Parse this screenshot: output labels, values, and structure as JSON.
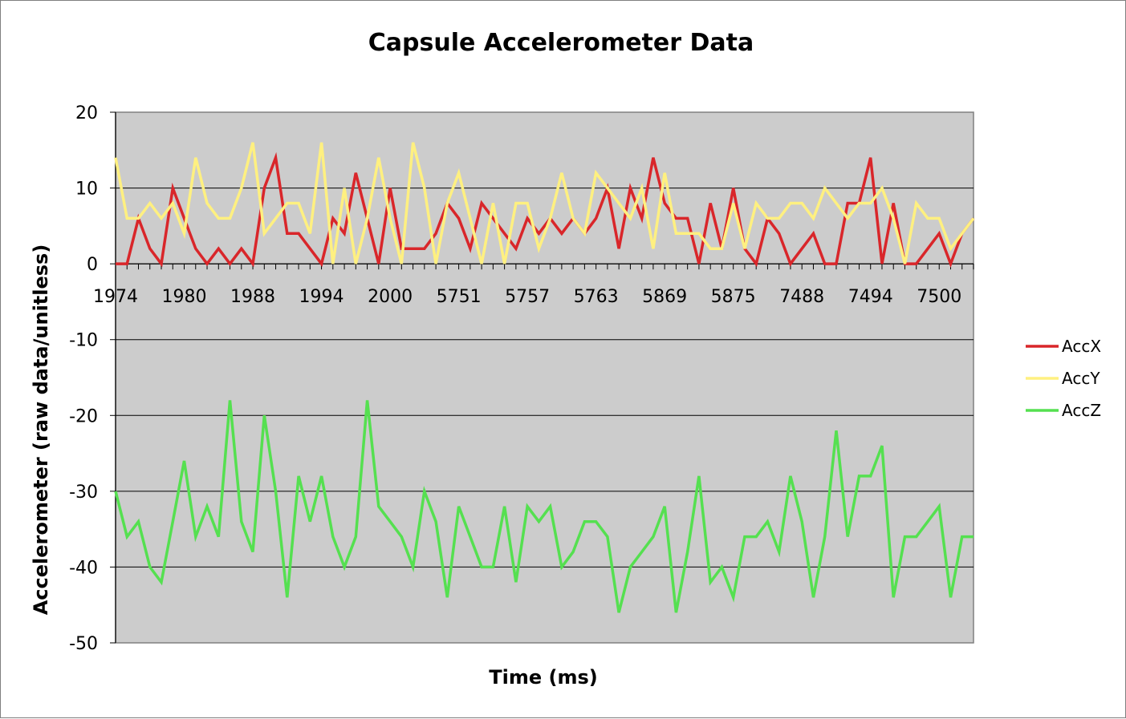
{
  "chart_data": {
    "type": "line",
    "title": "Capsule Accelerometer Data",
    "xlabel": "Time (ms)",
    "ylabel": "Accelerometer (raw data/unitless)",
    "ylim": [
      -50,
      20
    ],
    "yticks": [
      20,
      10,
      0,
      -10,
      -20,
      -30,
      -40,
      -50
    ],
    "grid": true,
    "legend_position": "right",
    "plot_background": "#cccccc",
    "x_tick_labels": [
      "1974",
      "1980",
      "1988",
      "1994",
      "2000",
      "5751",
      "5757",
      "5763",
      "5869",
      "5875",
      "7488",
      "7494",
      "7500"
    ],
    "series": [
      {
        "name": "AccX",
        "color": "#d9262a",
        "values": [
          0,
          0,
          6,
          2,
          0,
          10,
          6,
          2,
          0,
          2,
          0,
          2,
          0,
          10,
          14,
          4,
          4,
          2,
          0,
          6,
          4,
          12,
          6,
          0,
          10,
          2,
          2,
          2,
          4,
          8,
          6,
          2,
          8,
          6,
          4,
          2,
          6,
          4,
          6,
          4,
          6,
          4,
          6,
          10,
          2,
          10,
          6,
          14,
          8,
          6,
          6,
          0,
          8,
          2,
          10,
          2,
          0,
          6,
          4,
          0,
          2,
          4,
          0,
          0,
          8,
          8,
          14,
          0,
          8,
          0,
          0,
          2,
          4,
          0,
          4,
          6
        ]
      },
      {
        "name": "AccY",
        "color": "#fff080",
        "values": [
          14,
          6,
          6,
          8,
          6,
          8,
          4,
          14,
          8,
          6,
          6,
          10,
          16,
          4,
          6,
          8,
          8,
          4,
          16,
          0,
          10,
          0,
          6,
          14,
          6,
          0,
          16,
          10,
          0,
          8,
          12,
          6,
          0,
          8,
          0,
          8,
          8,
          2,
          6,
          12,
          6,
          4,
          12,
          10,
          8,
          6,
          10,
          2,
          12,
          4,
          4,
          4,
          2,
          2,
          8,
          2,
          8,
          6,
          6,
          8,
          8,
          6,
          10,
          8,
          6,
          8,
          8,
          10,
          6,
          0,
          8,
          6,
          6,
          2,
          4,
          6
        ]
      },
      {
        "name": "AccZ",
        "color": "#55e050",
        "values": [
          -30,
          -36,
          -34,
          -40,
          -42,
          -34,
          -26,
          -36,
          -32,
          -36,
          -18,
          -34,
          -38,
          -20,
          -30,
          -44,
          -28,
          -34,
          -28,
          -36,
          -40,
          -36,
          -18,
          -32,
          -34,
          -36,
          -40,
          -30,
          -34,
          -44,
          -32,
          -36,
          -40,
          -40,
          -32,
          -42,
          -32,
          -34,
          -32,
          -40,
          -38,
          -34,
          -34,
          -36,
          -46,
          -40,
          -38,
          -36,
          -32,
          -46,
          -38,
          -28,
          -42,
          -40,
          -44,
          -36,
          -36,
          -34,
          -38,
          -28,
          -34,
          -44,
          -36,
          -22,
          -36,
          -28,
          -28,
          -24,
          -44,
          -36,
          -36,
          -34,
          -32,
          -44,
          -36,
          -36
        ]
      }
    ]
  }
}
